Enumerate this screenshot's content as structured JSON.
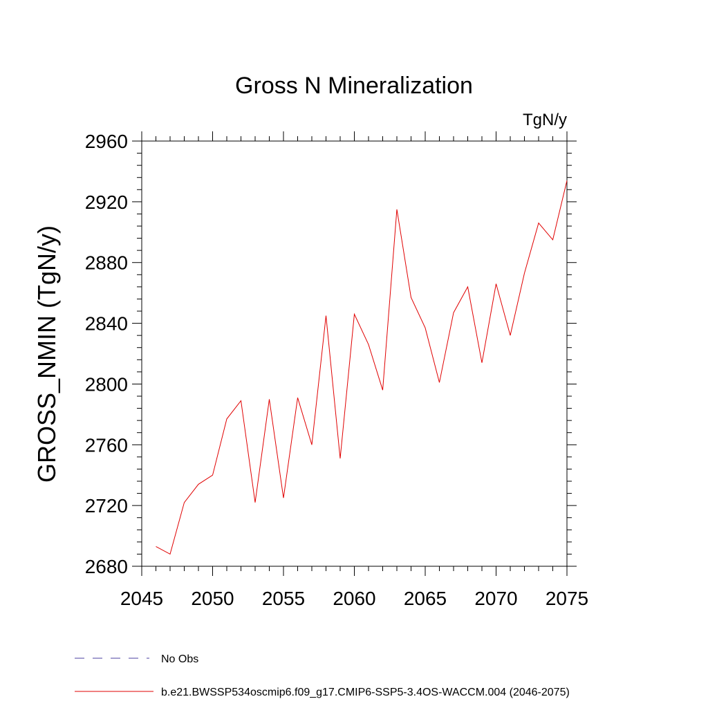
{
  "chart_data": {
    "type": "line",
    "title": "Gross N Mineralization",
    "units_label": "TgN/y",
    "ylabel": "GROSS_NMIN  (TgN/y)",
    "xlabel": "",
    "xlim": [
      2045,
      2075
    ],
    "ylim": [
      2680,
      2960
    ],
    "x_ticks": [
      "2045",
      "2050",
      "2055",
      "2060",
      "2065",
      "2070",
      "2075"
    ],
    "y_ticks": [
      "2680",
      "2720",
      "2760",
      "2800",
      "2840",
      "2880",
      "2920",
      "2960"
    ],
    "grid": false,
    "legend_position": "bottom-left",
    "x": [
      2046,
      2047,
      2048,
      2049,
      2050,
      2051,
      2052,
      2053,
      2054,
      2055,
      2056,
      2057,
      2058,
      2059,
      2060,
      2061,
      2062,
      2063,
      2064,
      2065,
      2066,
      2067,
      2068,
      2069,
      2070,
      2071,
      2072,
      2073,
      2074,
      2075
    ],
    "series": [
      {
        "name": "b.e21.BWSSP534oscmip6.f09_g17.CMIP6-SSP5-3.4OS-WACCM.004 (2046-2075)",
        "color": "#e00000",
        "values": [
          2693,
          2688,
          2722,
          2734,
          2740,
          2777,
          2789,
          2722,
          2790,
          2725,
          2791,
          2760,
          2845,
          2751,
          2846,
          2826,
          2796,
          2915,
          2857,
          2837,
          2801,
          2847,
          2864,
          2814,
          2866,
          2832,
          2873,
          2906,
          2895,
          2934
        ]
      }
    ],
    "legend": [
      {
        "label": "No Obs",
        "color": "#4a3fa0",
        "style": "dashed"
      },
      {
        "label": "b.e21.BWSSP534oscmip6.f09_g17.CMIP6-SSP5-3.4OS-WACCM.004 (2046-2075)",
        "color": "#e00000",
        "style": "solid"
      }
    ]
  }
}
